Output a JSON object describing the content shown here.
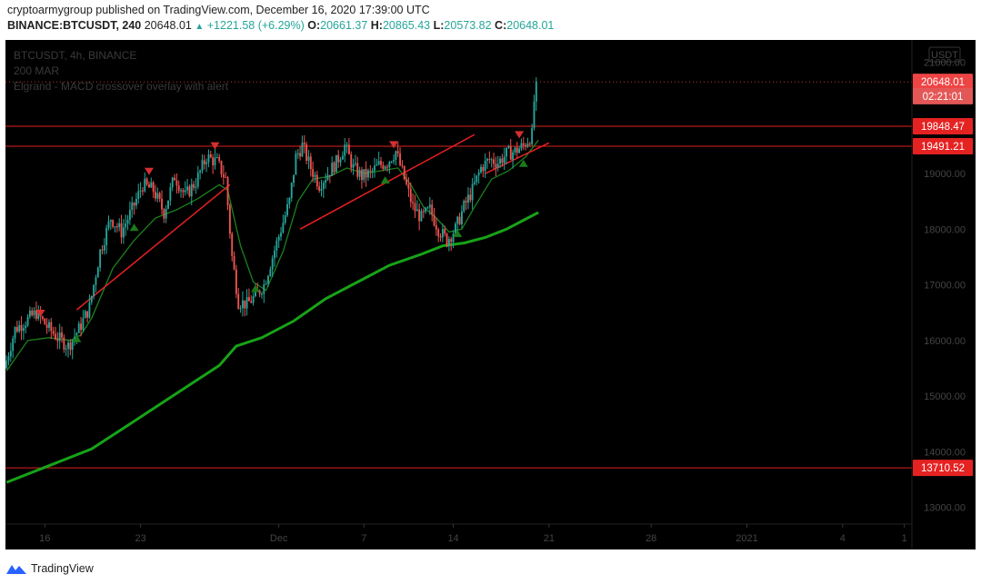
{
  "header": {
    "publisher": "cryptoarmygroup",
    "published_text": "published on TradingView.com, December 16, 2020 17:39:00 UTC",
    "symbol": "BINANCE:BTCUSDT, 240",
    "last": "20648.01",
    "change": "+1221.58 (+6.29%)",
    "o_label": "O:",
    "o": "20661.37",
    "h_label": "H:",
    "h": "20865.43",
    "l_label": "L:",
    "l": "20573.82",
    "c_label": "C:",
    "c": "20648.01"
  },
  "footer": {
    "brand": "TradingView"
  },
  "colors": {
    "background": "#000000",
    "up": "#26a69a",
    "down": "#ef5350",
    "ma": "#17a317",
    "level": "#e01f1f",
    "trend": "#e82020",
    "price_tag": "#ef4444"
  },
  "chart_data": {
    "type": "candlestick",
    "legend": [
      "BTCUSDT, 4h, BINANCE",
      "200 MAR",
      "Elgrand - MACD crossover overlay with alert"
    ],
    "currency_label": "USDT",
    "ylim": [
      12700,
      21400
    ],
    "y_ticks": [
      "21000.00",
      "19000.00",
      "18000.00",
      "17000.00",
      "16000.00",
      "15000.00",
      "14000.00",
      "13000.00"
    ],
    "x_ticks": [
      "16",
      "23",
      "Dec",
      "7",
      "14",
      "21",
      "28",
      "2021",
      "4",
      "1"
    ],
    "price_labels": [
      {
        "text": "20648.01",
        "value": 20648.01
      },
      {
        "text": "02:21:01",
        "value": 20390
      },
      {
        "text": "19848.47",
        "value": 19848.47
      },
      {
        "text": "19491.21",
        "value": 19491.21
      },
      {
        "text": "13710.52",
        "value": 13710.52
      }
    ],
    "horizontal_levels": [
      19848.47,
      19491.21,
      13710.52
    ],
    "last_price": 20648.01,
    "path": [
      [
        0,
        15500
      ],
      [
        5,
        16200
      ],
      [
        10,
        16350
      ],
      [
        15,
        16500
      ],
      [
        20,
        16250
      ],
      [
        25,
        16050
      ],
      [
        30,
        15900
      ],
      [
        35,
        16200
      ],
      [
        40,
        16600
      ],
      [
        45,
        17600
      ],
      [
        50,
        18200
      ],
      [
        55,
        17950
      ],
      [
        60,
        18350
      ],
      [
        65,
        18800
      ],
      [
        70,
        18700
      ],
      [
        75,
        18300
      ],
      [
        80,
        18950
      ],
      [
        85,
        18600
      ],
      [
        90,
        18850
      ],
      [
        95,
        19300
      ],
      [
        100,
        19200
      ],
      [
        104,
        18900
      ],
      [
        107,
        17500
      ],
      [
        110,
        16700
      ],
      [
        114,
        16650
      ],
      [
        118,
        16800
      ],
      [
        122,
        17000
      ],
      [
        126,
        17500
      ],
      [
        130,
        18000
      ],
      [
        134,
        18500
      ],
      [
        137,
        19300
      ],
      [
        140,
        19500
      ],
      [
        144,
        19100
      ],
      [
        148,
        18800
      ],
      [
        152,
        19000
      ],
      [
        156,
        19200
      ],
      [
        160,
        19500
      ],
      [
        164,
        19100
      ],
      [
        168,
        18950
      ],
      [
        172,
        19000
      ],
      [
        176,
        19150
      ],
      [
        180,
        19200
      ],
      [
        184,
        19400
      ],
      [
        188,
        18900
      ],
      [
        192,
        18400
      ],
      [
        196,
        18200
      ],
      [
        200,
        18350
      ],
      [
        204,
        18000
      ],
      [
        208,
        17800
      ],
      [
        212,
        18000
      ],
      [
        216,
        18400
      ],
      [
        220,
        18700
      ],
      [
        224,
        19100
      ],
      [
        228,
        19250
      ],
      [
        232,
        19200
      ],
      [
        236,
        19350
      ],
      [
        240,
        19400
      ],
      [
        244,
        19500
      ],
      [
        248,
        19700
      ],
      [
        249,
        20300
      ],
      [
        250,
        20648
      ]
    ],
    "series": [
      {
        "name": "200 MAR",
        "points": [
          [
            0,
            13450
          ],
          [
            20,
            13750
          ],
          [
            40,
            14050
          ],
          [
            60,
            14550
          ],
          [
            80,
            15050
          ],
          [
            100,
            15550
          ],
          [
            108,
            15900
          ],
          [
            120,
            16050
          ],
          [
            135,
            16350
          ],
          [
            150,
            16750
          ],
          [
            165,
            17050
          ],
          [
            180,
            17350
          ],
          [
            195,
            17550
          ],
          [
            205,
            17700
          ],
          [
            215,
            17750
          ],
          [
            225,
            17850
          ],
          [
            235,
            18000
          ],
          [
            245,
            18200
          ],
          [
            250,
            18300
          ]
        ]
      },
      {
        "name": "Elgrand - MACD crossover overlay with alert",
        "points": [
          [
            0,
            15450
          ],
          [
            10,
            16000
          ],
          [
            20,
            16050
          ],
          [
            30,
            16000
          ],
          [
            35,
            16100
          ],
          [
            40,
            16400
          ],
          [
            50,
            17300
          ],
          [
            60,
            17800
          ],
          [
            70,
            18200
          ],
          [
            80,
            18350
          ],
          [
            90,
            18550
          ],
          [
            100,
            18800
          ],
          [
            104,
            18700
          ],
          [
            110,
            17700
          ],
          [
            116,
            17050
          ],
          [
            122,
            16900
          ],
          [
            130,
            17600
          ],
          [
            137,
            18500
          ],
          [
            144,
            18900
          ],
          [
            152,
            18950
          ],
          [
            160,
            19100
          ],
          [
            168,
            19000
          ],
          [
            176,
            19050
          ],
          [
            184,
            19100
          ],
          [
            190,
            18800
          ],
          [
            196,
            18400
          ],
          [
            202,
            18200
          ],
          [
            208,
            17950
          ],
          [
            214,
            18000
          ],
          [
            220,
            18400
          ],
          [
            228,
            18900
          ],
          [
            236,
            19050
          ],
          [
            244,
            19300
          ],
          [
            250,
            19600
          ]
        ]
      }
    ],
    "trendlines": [
      [
        [
          33,
          16550
        ],
        [
          105,
          18800
        ]
      ],
      [
        [
          138,
          18000
        ],
        [
          220,
          19700
        ]
      ],
      [
        [
          225,
          19000
        ],
        [
          255,
          19550
        ]
      ]
    ],
    "markers": [
      {
        "type": "sell",
        "bar": 16,
        "value": 16470
      },
      {
        "type": "buy",
        "bar": 33,
        "value": 16050
      },
      {
        "type": "buy",
        "bar": 60,
        "value": 18050
      },
      {
        "type": "sell",
        "bar": 67,
        "value": 19020
      },
      {
        "type": "sell",
        "bar": 98,
        "value": 19480
      },
      {
        "type": "buy",
        "bar": 117,
        "value": 16950
      },
      {
        "type": "sell",
        "bar": 182,
        "value": 19500
      },
      {
        "type": "buy",
        "bar": 178,
        "value": 18900
      },
      {
        "type": "buy",
        "bar": 212,
        "value": 17940
      },
      {
        "type": "sell",
        "bar": 241,
        "value": 19680
      },
      {
        "type": "buy",
        "bar": 243,
        "value": 19200
      }
    ]
  }
}
